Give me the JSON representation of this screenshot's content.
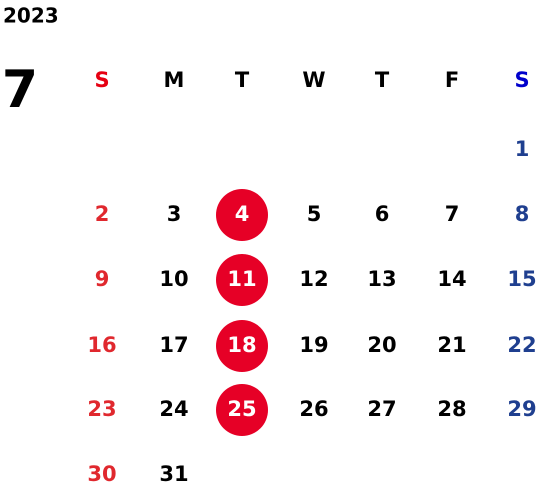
{
  "year": "2023",
  "month": "7",
  "weekdays": [
    "S",
    "M",
    "T",
    "W",
    "T",
    "F",
    "S"
  ],
  "weeks": [
    [
      null,
      null,
      null,
      null,
      null,
      null,
      {
        "day": "1"
      }
    ],
    [
      {
        "day": "2"
      },
      {
        "day": "3"
      },
      {
        "day": "4",
        "highlight": true
      },
      {
        "day": "5"
      },
      {
        "day": "6"
      },
      {
        "day": "7"
      },
      {
        "day": "8"
      }
    ],
    [
      {
        "day": "9"
      },
      {
        "day": "10"
      },
      {
        "day": "11",
        "highlight": true
      },
      {
        "day": "12"
      },
      {
        "day": "13"
      },
      {
        "day": "14"
      },
      {
        "day": "15"
      }
    ],
    [
      {
        "day": "16"
      },
      {
        "day": "17"
      },
      {
        "day": "18",
        "highlight": true
      },
      {
        "day": "19"
      },
      {
        "day": "20"
      },
      {
        "day": "21"
      },
      {
        "day": "22"
      }
    ],
    [
      {
        "day": "23"
      },
      {
        "day": "24"
      },
      {
        "day": "25",
        "highlight": true
      },
      {
        "day": "26"
      },
      {
        "day": "27"
      },
      {
        "day": "28"
      },
      {
        "day": "29"
      }
    ],
    [
      {
        "day": "30"
      },
      {
        "day": "31"
      },
      null,
      null,
      null,
      null,
      null
    ]
  ]
}
